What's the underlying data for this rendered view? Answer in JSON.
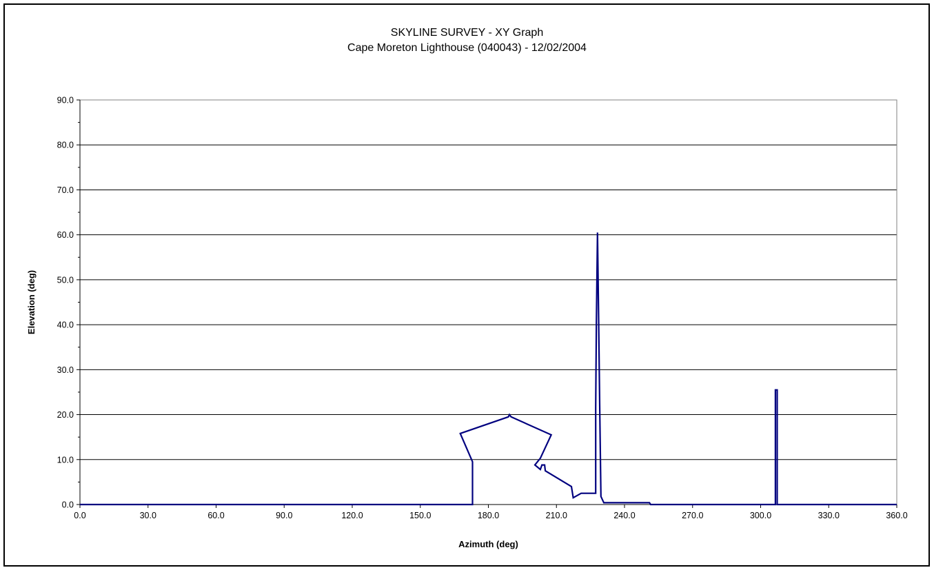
{
  "chart_data": {
    "type": "line",
    "title": "SKYLINE SURVEY - XY Graph",
    "subtitle": "Cape Moreton Lighthouse (040043) - 12/02/2004",
    "xlabel": "Azimuth (deg)",
    "ylabel": "Elevation (deg)",
    "xlim": [
      0,
      360
    ],
    "ylim": [
      0,
      90
    ],
    "xticks": [
      "0.0",
      "30.0",
      "60.0",
      "90.0",
      "120.0",
      "150.0",
      "180.0",
      "210.0",
      "240.0",
      "270.0",
      "300.0",
      "330.0",
      "360.0"
    ],
    "yticks": [
      "0.0",
      "10.0",
      "20.0",
      "30.0",
      "40.0",
      "50.0",
      "60.0",
      "70.0",
      "80.0",
      "90.0"
    ],
    "grid": "horizontal major",
    "legend": "none",
    "colors": {
      "line": "#00007f",
      "grid": "#000000",
      "plot_border": "#808080",
      "frame": "#000000"
    },
    "series": [
      {
        "points": [
          [
            0,
            0
          ],
          [
            173,
            0
          ],
          [
            173,
            9.5
          ],
          [
            167.6,
            15.8
          ],
          [
            188.8,
            19.5
          ],
          [
            189.3,
            20
          ],
          [
            190,
            19.5
          ],
          [
            207.7,
            15.5
          ],
          [
            202.9,
            10.3
          ],
          [
            200.5,
            8.8
          ],
          [
            202.9,
            7.8
          ],
          [
            203.6,
            8.8
          ],
          [
            204.8,
            8.8
          ],
          [
            205.1,
            7.5
          ],
          [
            216.6,
            4
          ],
          [
            217.4,
            1.5
          ],
          [
            220.9,
            2.5
          ],
          [
            227.3,
            2.5
          ],
          [
            227.3,
            21.5
          ],
          [
            227.6,
            40.5
          ],
          [
            228.1,
            60.5
          ],
          [
            228.6,
            41
          ],
          [
            229.1,
            21
          ],
          [
            229.6,
            1.8
          ],
          [
            230.9,
            0.4
          ],
          [
            251,
            0.4
          ],
          [
            251.5,
            0
          ],
          [
            306.5,
            0
          ],
          [
            306.5,
            25.5
          ],
          [
            307.3,
            25.5
          ],
          [
            307.3,
            0
          ],
          [
            360,
            0
          ]
        ]
      }
    ]
  }
}
